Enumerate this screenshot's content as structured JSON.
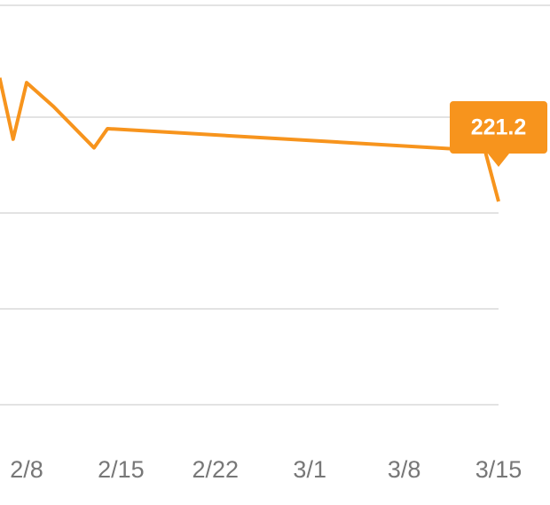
{
  "chart_data": {
    "type": "line",
    "x": [
      "2/6",
      "2/7",
      "2/8",
      "2/10",
      "2/13",
      "2/14",
      "3/14",
      "3/15"
    ],
    "series": [
      {
        "color": "#f7941d",
        "values": [
          234.1,
          227.7,
          233.6,
          231.1,
          226.8,
          228.8,
          226.5,
          221.2
        ]
      }
    ],
    "ylim": [
      200,
      240
    ],
    "xticks": [
      "2/8",
      "2/15",
      "2/22",
      "3/1",
      "3/8",
      "3/15"
    ]
  }
}
